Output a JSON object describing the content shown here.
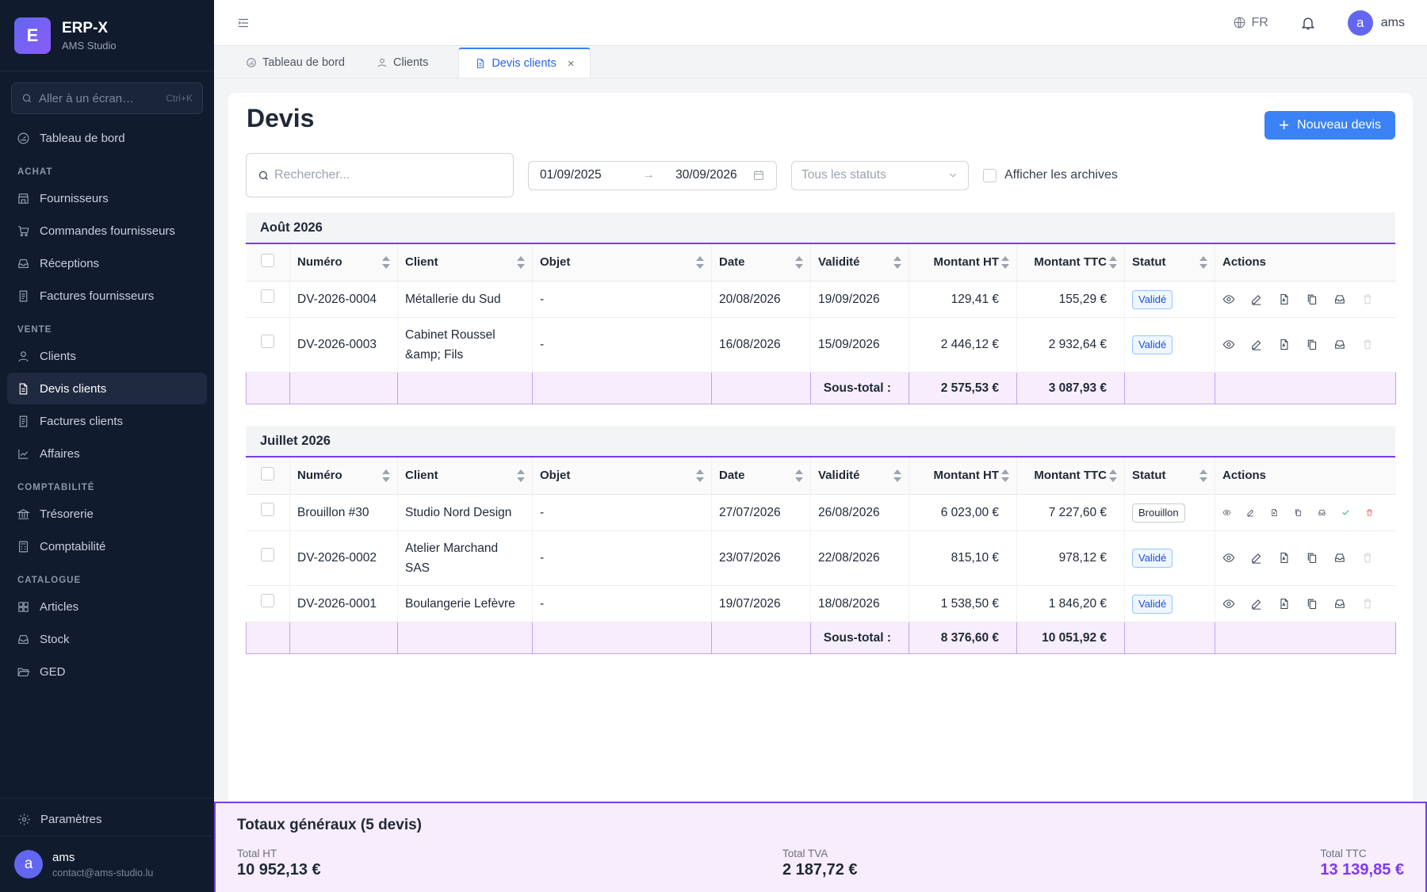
{
  "brand": {
    "logo_letter": "E",
    "name": "ERP-X",
    "subtitle": "AMS Studio"
  },
  "sidebar": {
    "search_placeholder": "Aller à un écran…",
    "search_shortcut": "Ctrl+K",
    "dashboard": "Tableau de bord",
    "sections": {
      "achat": {
        "title": "ACHAT",
        "items": [
          "Fournisseurs",
          "Commandes fournisseurs",
          "Réceptions",
          "Factures fournisseurs"
        ]
      },
      "vente": {
        "title": "VENTE",
        "items": [
          "Clients",
          "Devis clients",
          "Factures clients",
          "Affaires"
        ]
      },
      "compta": {
        "title": "COMPTABILITÉ",
        "items": [
          "Trésorerie",
          "Comptabilité"
        ]
      },
      "catalogue": {
        "title": "CATALOGUE",
        "items": [
          "Articles",
          "Stock",
          "GED"
        ]
      }
    },
    "settings": "Paramètres",
    "user": {
      "initial": "a",
      "name": "ams",
      "email": "contact@ams-studio.lu"
    }
  },
  "topbar": {
    "lang": "FR",
    "user_initial": "a",
    "user_name": "ams"
  },
  "tabs": [
    {
      "label": "Tableau de bord"
    },
    {
      "label": "Clients"
    },
    {
      "label": "Devis clients",
      "close": "×"
    }
  ],
  "page": {
    "title": "Devis",
    "new_button": "Nouveau devis"
  },
  "filters": {
    "search_placeholder": "Rechercher...",
    "date_from": "01/09/2025",
    "date_arrow": "→",
    "date_to": "30/09/2026",
    "status_placeholder": "Tous les statuts",
    "archive_label": "Afficher les archives"
  },
  "columns": [
    "Numéro",
    "Client",
    "Objet",
    "Date",
    "Validité",
    "Montant HT",
    "Montant TTC",
    "Statut",
    "Actions"
  ],
  "subtotal_label": "Sous-total :",
  "groups": [
    {
      "title": "Août 2026",
      "rows": [
        {
          "num": "DV-2026-0004",
          "client": "Métallerie du Sud",
          "objet": "-",
          "date": "20/08/2026",
          "validite": "19/09/2026",
          "ht": "129,41 €",
          "ttc": "155,29 €",
          "statut": "Validé"
        },
        {
          "num": "DV-2026-0003",
          "client": "Cabinet Roussel &amp; Fils",
          "objet": "-",
          "date": "16/08/2026",
          "validite": "15/09/2026",
          "ht": "2 446,12 €",
          "ttc": "2 932,64 €",
          "statut": "Validé"
        }
      ],
      "subtotal_ht": "2 575,53 €",
      "subtotal_ttc": "3 087,93 €"
    },
    {
      "title": "Juillet 2026",
      "rows": [
        {
          "num": "Brouillon #30",
          "client": "Studio Nord Design",
          "objet": "-",
          "date": "27/07/2026",
          "validite": "26/08/2026",
          "ht": "6 023,00 €",
          "ttc": "7 227,60 €",
          "statut": "Brouillon"
        },
        {
          "num": "DV-2026-0002",
          "client": "Atelier Marchand SAS",
          "objet": "-",
          "date": "23/07/2026",
          "validite": "22/08/2026",
          "ht": "815,10 €",
          "ttc": "978,12 €",
          "statut": "Validé"
        },
        {
          "num": "DV-2026-0001",
          "client": "Boulangerie Lefèvre",
          "objet": "-",
          "date": "19/07/2026",
          "validite": "18/08/2026",
          "ht": "1 538,50 €",
          "ttc": "1 846,20 €",
          "statut": "Validé"
        }
      ],
      "subtotal_ht": "8 376,60 €",
      "subtotal_ttc": "10 051,92 €"
    }
  ],
  "totals": {
    "title": "Totaux généraux (5 devis)",
    "ht_label": "Total HT",
    "ht": "10 952,13 €",
    "tva_label": "Total TVA",
    "tva": "2 187,72 €",
    "ttc_label": "Total TTC",
    "ttc": "13 139,85 €",
    "accent_color": "#7c3aed"
  }
}
